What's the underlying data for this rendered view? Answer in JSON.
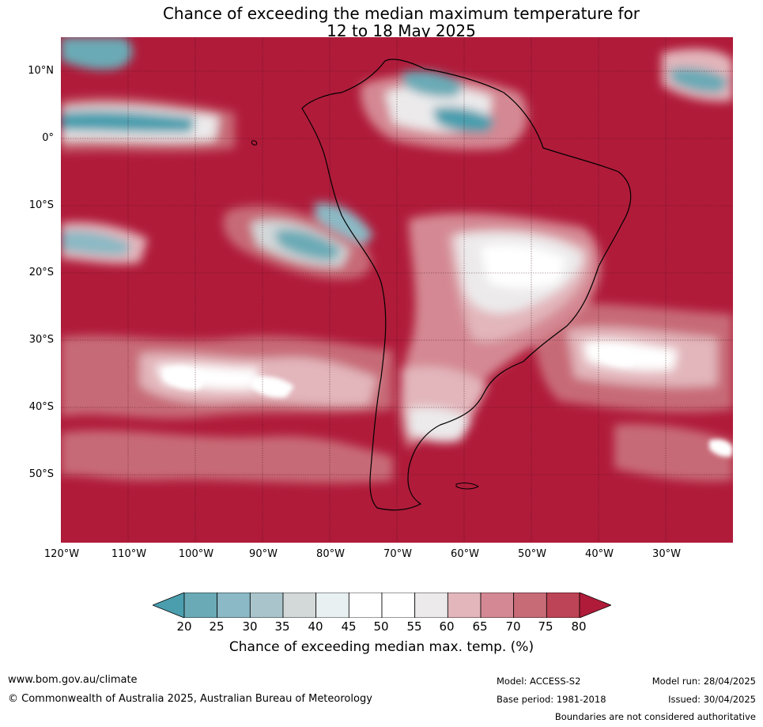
{
  "title": {
    "line1": "Chance of exceeding the median maximum temperature for",
    "line2": "12 to 18 May 2025"
  },
  "map": {
    "region": "South America and surrounding oceans",
    "latitude_labels": [
      "10°N",
      "0°",
      "10°S",
      "20°S",
      "30°S",
      "40°S",
      "50°S"
    ],
    "longitude_labels": [
      "120°W",
      "110°W",
      "100°W",
      "90°W",
      "80°W",
      "70°W",
      "60°W",
      "50°W",
      "40°W",
      "30°W"
    ],
    "background_color": "#b01b3a"
  },
  "colorbar": {
    "ticks": [
      "20",
      "25",
      "30",
      "35",
      "40",
      "45",
      "50",
      "55",
      "60",
      "65",
      "70",
      "75",
      "80"
    ],
    "colors": [
      "#4a9eae",
      "#6aaab6",
      "#8bb9c5",
      "#aac4cb",
      "#d3d8d9",
      "#e9f0f2",
      "#ffffff",
      "#ffffff",
      "#eceaeb",
      "#e2b6bb",
      "#d48893",
      "#c76b77",
      "#bd4456",
      "#b01b3a"
    ],
    "label": "Chance of exceeding median max. temp. (%)"
  },
  "footer": {
    "website": "www.bom.gov.au/climate",
    "copyright": "© Commonwealth of Australia 2025, Australian Bureau of Meteorology",
    "model": "Model: ACCESS-S2",
    "base_period": "Base period: 1981-2018",
    "model_run": "Model run: 28/04/2025",
    "issued": "Issued: 30/04/2025",
    "disclaimer": "Boundaries are not considered authoritative"
  }
}
